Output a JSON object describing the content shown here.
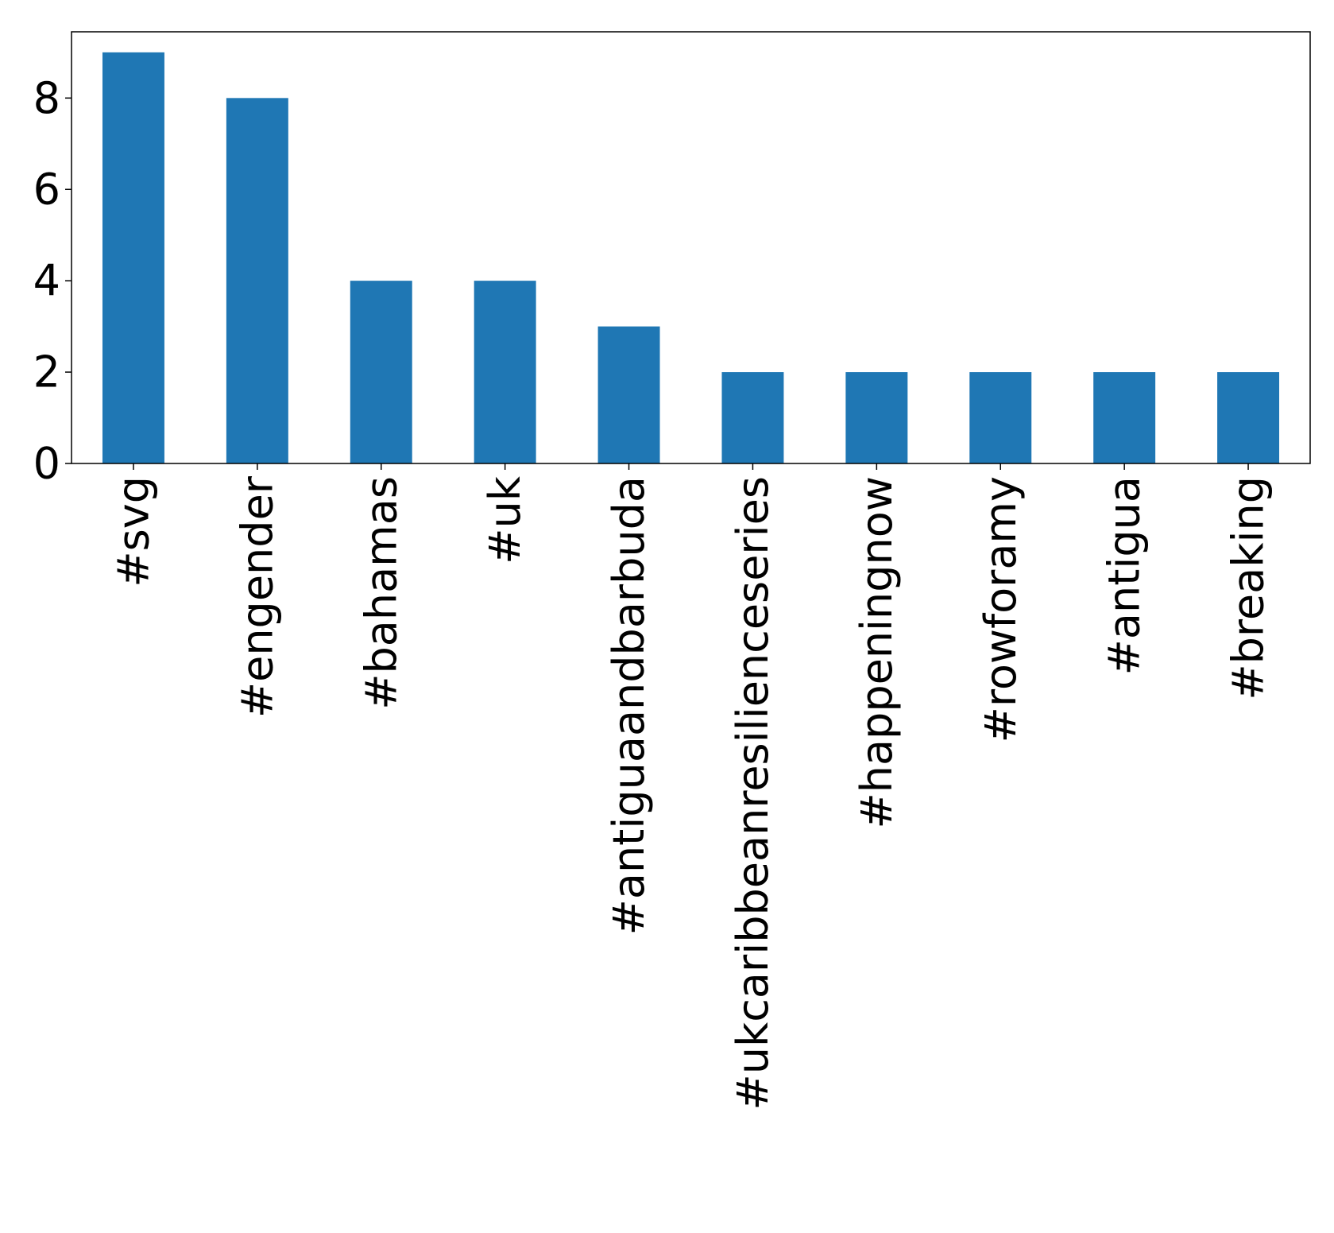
{
  "chart_data": {
    "type": "bar",
    "title": "",
    "xlabel": "",
    "ylabel": "",
    "categories": [
      "#svg",
      "#engender",
      "#bahamas",
      "#uk",
      "#antiguaandbarbuda",
      "#ukcaribbeanresilienceseries",
      "#happeningnow",
      "#rowforamy",
      "#antigua",
      "#breaking"
    ],
    "values": [
      9,
      8,
      4,
      4,
      3,
      2,
      2,
      2,
      2,
      2
    ],
    "ylim": [
      0,
      9.45
    ],
    "yticks": [
      0,
      2,
      4,
      6,
      8
    ],
    "bar_color": "#1f77b4",
    "xtick_rotation": 90,
    "grid": false,
    "legend": "none"
  }
}
